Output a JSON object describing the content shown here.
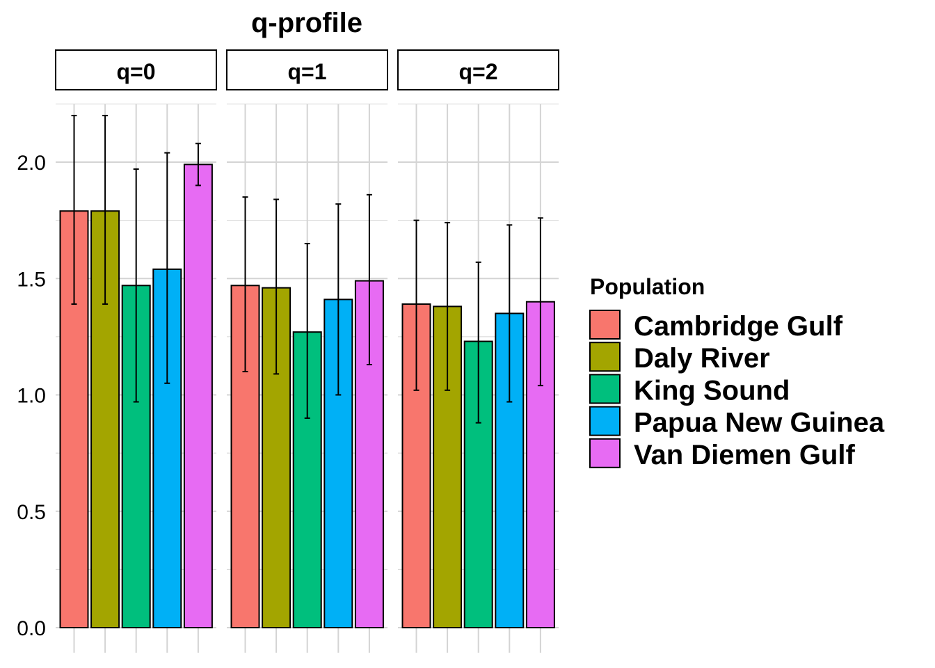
{
  "chart_data": {
    "type": "bar",
    "title": "q-profile",
    "xlabel": "",
    "ylabel": "",
    "ylim": [
      0,
      2.25
    ],
    "yticks": [
      "0.0",
      "0.5",
      "1.0",
      "1.5",
      "2.0"
    ],
    "grid": true,
    "legend_position": "right",
    "legend_title": "Population",
    "categories": [
      "Cambridge Gulf",
      "Daly River",
      "King Sound",
      "Papua New Guinea",
      "Van Diemen Gulf"
    ],
    "colors": [
      "#F8766D",
      "#A3A500",
      "#00BF7D",
      "#00B0F6",
      "#E76BF3"
    ],
    "facets": [
      {
        "label": "q=0",
        "values": [
          1.79,
          1.79,
          1.47,
          1.54,
          1.99
        ],
        "lower": [
          1.39,
          1.39,
          0.97,
          1.05,
          1.9
        ],
        "upper": [
          2.2,
          2.2,
          1.97,
          2.04,
          2.08
        ]
      },
      {
        "label": "q=1",
        "values": [
          1.47,
          1.46,
          1.27,
          1.41,
          1.49
        ],
        "lower": [
          1.1,
          1.09,
          0.9,
          1.0,
          1.13
        ],
        "upper": [
          1.85,
          1.84,
          1.65,
          1.82,
          1.86
        ]
      },
      {
        "label": "q=2",
        "values": [
          1.39,
          1.38,
          1.23,
          1.35,
          1.4
        ],
        "lower": [
          1.02,
          1.02,
          0.88,
          0.97,
          1.04
        ],
        "upper": [
          1.75,
          1.74,
          1.57,
          1.73,
          1.76
        ]
      }
    ]
  }
}
